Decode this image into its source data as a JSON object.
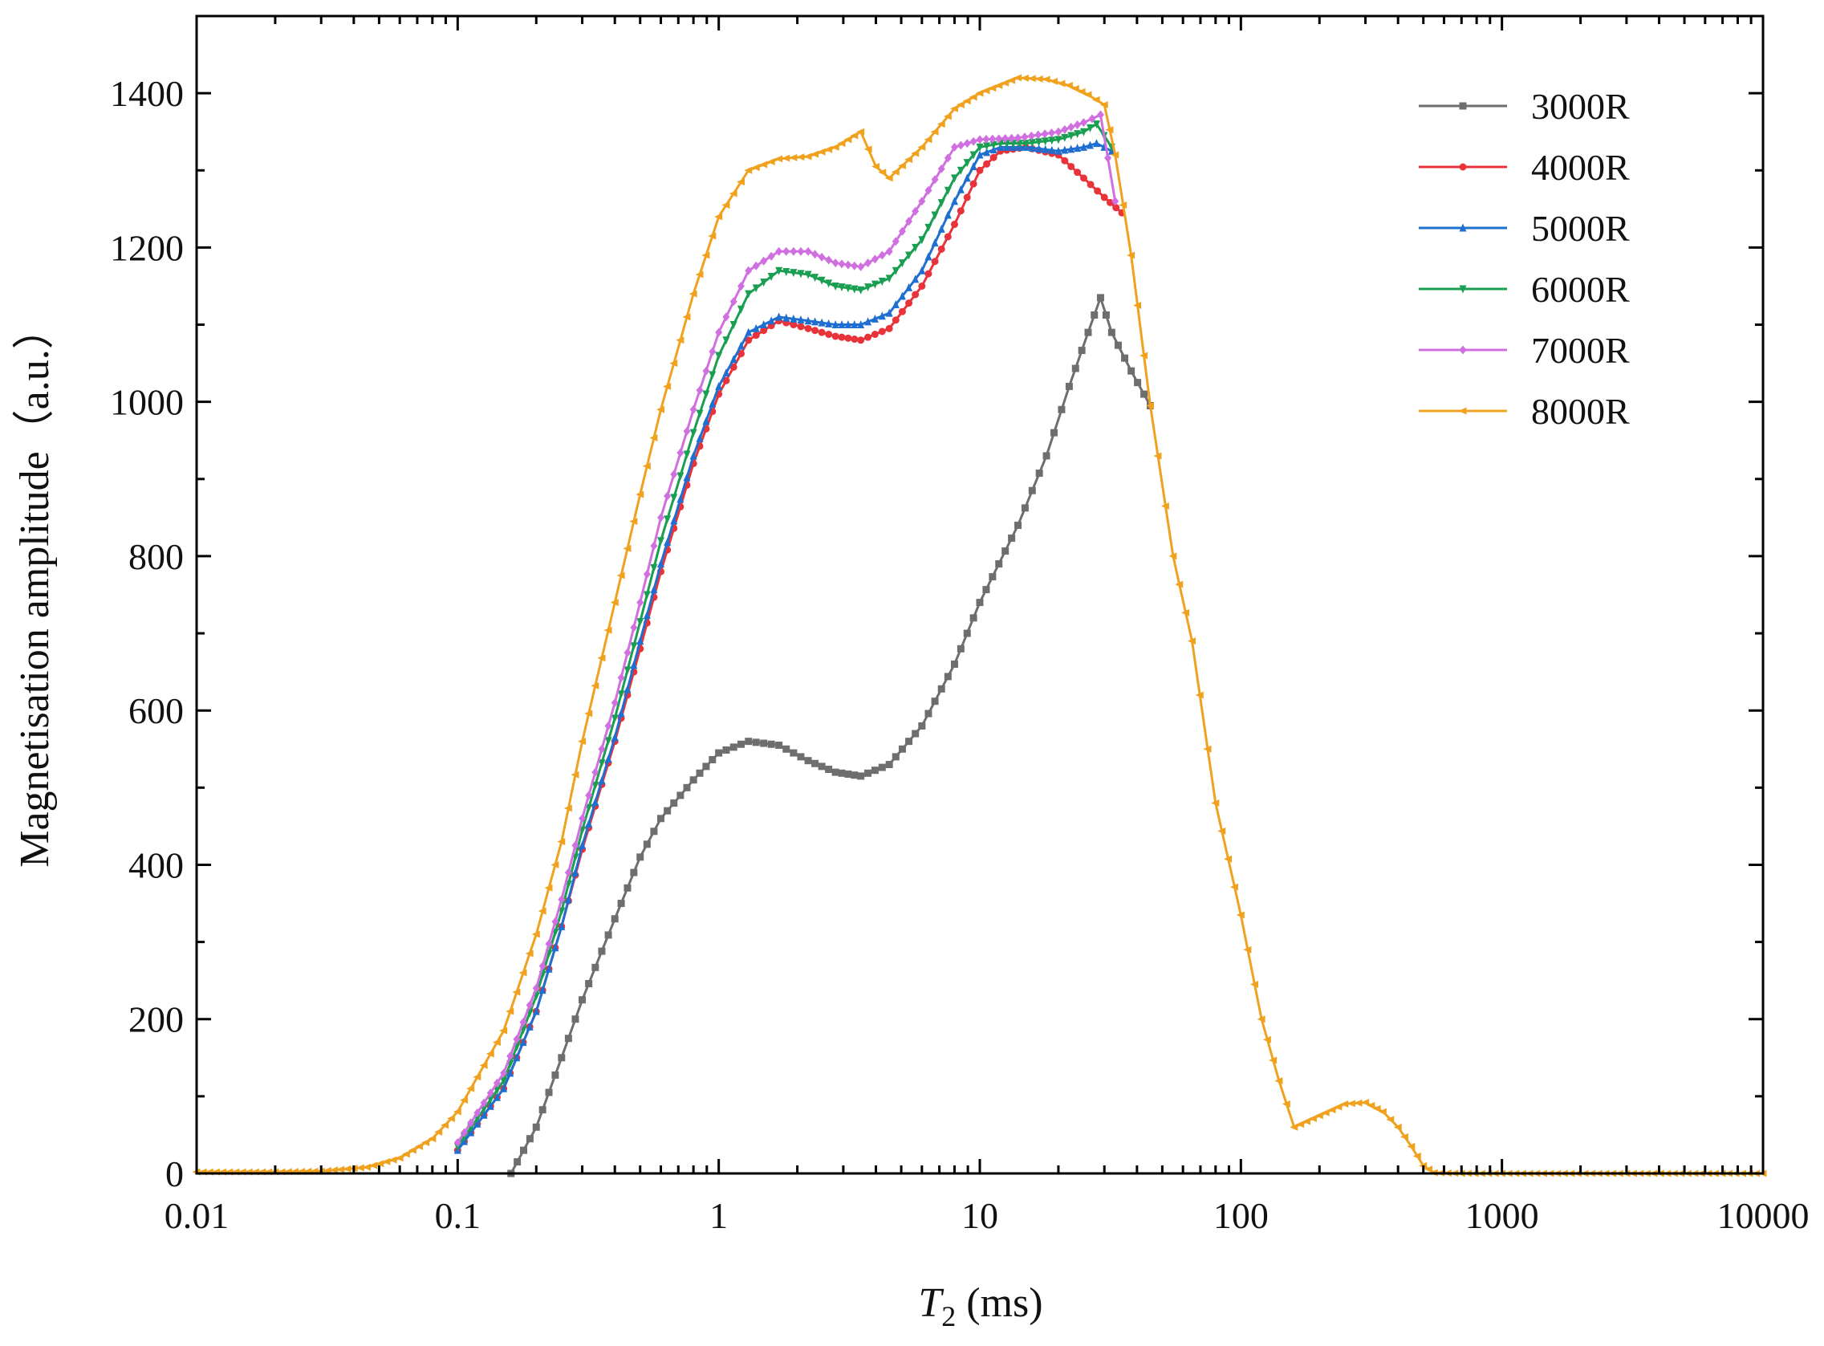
{
  "chart_data": {
    "type": "line",
    "title": "",
    "xlabel": {
      "symbol": "T",
      "subscript": "2",
      "unit": " (ms)"
    },
    "ylabel": "Magnetisation amplitude（a.u.）",
    "x_scale": "log",
    "xlim": [
      0.01,
      10000
    ],
    "ylim": [
      0,
      1500
    ],
    "x_ticks": [
      0.01,
      0.1,
      1,
      10,
      100,
      1000,
      10000
    ],
    "x_tick_labels": [
      "0.01",
      "0.1",
      "1",
      "10",
      "100",
      "1000",
      "10000"
    ],
    "y_ticks": [
      0,
      200,
      400,
      600,
      800,
      1000,
      1200,
      1400
    ],
    "y_tick_labels": [
      "0",
      "200",
      "400",
      "600",
      "800",
      "1000",
      "1200",
      "1400"
    ],
    "legend_position": "top-right",
    "series": [
      {
        "name": "3000R",
        "color": "#6e6e6e",
        "marker": "square",
        "points": [
          [
            0.16,
            0
          ],
          [
            0.2,
            60
          ],
          [
            0.25,
            150
          ],
          [
            0.3,
            225
          ],
          [
            0.4,
            330
          ],
          [
            0.5,
            410
          ],
          [
            0.6,
            460
          ],
          [
            0.8,
            510
          ],
          [
            1.0,
            545
          ],
          [
            1.3,
            560
          ],
          [
            1.7,
            555
          ],
          [
            2.2,
            535
          ],
          [
            2.8,
            520
          ],
          [
            3.5,
            515
          ],
          [
            4.5,
            530
          ],
          [
            6,
            580
          ],
          [
            8,
            660
          ],
          [
            10,
            740
          ],
          [
            14,
            840
          ],
          [
            18,
            930
          ],
          [
            22,
            1020
          ],
          [
            26,
            1090
          ],
          [
            29,
            1135
          ],
          [
            32,
            1090
          ],
          [
            38,
            1040
          ],
          [
            45,
            995
          ]
        ]
      },
      {
        "name": "4000R",
        "color": "#e8333a",
        "marker": "circle",
        "points": [
          [
            0.1,
            30
          ],
          [
            0.15,
            110
          ],
          [
            0.2,
            210
          ],
          [
            0.25,
            320
          ],
          [
            0.3,
            420
          ],
          [
            0.4,
            560
          ],
          [
            0.5,
            680
          ],
          [
            0.6,
            780
          ],
          [
            0.8,
            920
          ],
          [
            1.0,
            1010
          ],
          [
            1.3,
            1080
          ],
          [
            1.7,
            1105
          ],
          [
            2.2,
            1095
          ],
          [
            2.8,
            1085
          ],
          [
            3.5,
            1080
          ],
          [
            4.5,
            1095
          ],
          [
            6,
            1150
          ],
          [
            8,
            1230
          ],
          [
            10,
            1300
          ],
          [
            12,
            1325
          ],
          [
            15,
            1330
          ],
          [
            20,
            1320
          ],
          [
            25,
            1290
          ],
          [
            30,
            1265
          ],
          [
            35,
            1245
          ]
        ]
      },
      {
        "name": "5000R",
        "color": "#1f6fd1",
        "marker": "triangle-up",
        "points": [
          [
            0.1,
            30
          ],
          [
            0.15,
            110
          ],
          [
            0.2,
            210
          ],
          [
            0.25,
            320
          ],
          [
            0.3,
            425
          ],
          [
            0.4,
            565
          ],
          [
            0.5,
            690
          ],
          [
            0.6,
            790
          ],
          [
            0.8,
            930
          ],
          [
            1.0,
            1020
          ],
          [
            1.3,
            1090
          ],
          [
            1.7,
            1110
          ],
          [
            2.2,
            1105
          ],
          [
            2.8,
            1100
          ],
          [
            3.5,
            1100
          ],
          [
            4.5,
            1115
          ],
          [
            6,
            1170
          ],
          [
            8,
            1260
          ],
          [
            10,
            1320
          ],
          [
            12,
            1330
          ],
          [
            15,
            1330
          ],
          [
            20,
            1325
          ],
          [
            25,
            1330
          ],
          [
            28,
            1335
          ],
          [
            32,
            1325
          ]
        ]
      },
      {
        "name": "6000R",
        "color": "#1a9e52",
        "marker": "triangle-down",
        "points": [
          [
            0.1,
            35
          ],
          [
            0.15,
            120
          ],
          [
            0.2,
            230
          ],
          [
            0.25,
            340
          ],
          [
            0.3,
            445
          ],
          [
            0.4,
            590
          ],
          [
            0.5,
            715
          ],
          [
            0.6,
            820
          ],
          [
            0.8,
            960
          ],
          [
            1.0,
            1060
          ],
          [
            1.3,
            1140
          ],
          [
            1.7,
            1170
          ],
          [
            2.2,
            1165
          ],
          [
            2.8,
            1150
          ],
          [
            3.5,
            1145
          ],
          [
            4.5,
            1160
          ],
          [
            6,
            1210
          ],
          [
            8,
            1290
          ],
          [
            10,
            1330
          ],
          [
            12,
            1335
          ],
          [
            15,
            1335
          ],
          [
            20,
            1340
          ],
          [
            25,
            1350
          ],
          [
            28,
            1360
          ],
          [
            32,
            1330
          ]
        ]
      },
      {
        "name": "7000R",
        "color": "#d070e0",
        "marker": "diamond",
        "points": [
          [
            0.1,
            40
          ],
          [
            0.15,
            130
          ],
          [
            0.2,
            240
          ],
          [
            0.25,
            355
          ],
          [
            0.3,
            460
          ],
          [
            0.4,
            610
          ],
          [
            0.5,
            740
          ],
          [
            0.6,
            850
          ],
          [
            0.8,
            990
          ],
          [
            1.0,
            1090
          ],
          [
            1.3,
            1170
          ],
          [
            1.7,
            1195
          ],
          [
            2.2,
            1195
          ],
          [
            2.8,
            1180
          ],
          [
            3.5,
            1175
          ],
          [
            4.5,
            1195
          ],
          [
            6,
            1260
          ],
          [
            8,
            1330
          ],
          [
            10,
            1340
          ],
          [
            14,
            1342
          ],
          [
            20,
            1350
          ],
          [
            25,
            1362
          ],
          [
            29,
            1372
          ],
          [
            33,
            1260
          ]
        ]
      },
      {
        "name": "8000R",
        "color": "#f0a21e",
        "marker": "triangle-left",
        "points": [
          [
            0.01,
            2
          ],
          [
            0.02,
            2
          ],
          [
            0.03,
            3
          ],
          [
            0.045,
            8
          ],
          [
            0.06,
            20
          ],
          [
            0.08,
            45
          ],
          [
            0.1,
            80
          ],
          [
            0.15,
            185
          ],
          [
            0.2,
            310
          ],
          [
            0.25,
            430
          ],
          [
            0.3,
            560
          ],
          [
            0.4,
            740
          ],
          [
            0.5,
            880
          ],
          [
            0.6,
            990
          ],
          [
            0.8,
            1140
          ],
          [
            1.0,
            1240
          ],
          [
            1.3,
            1300
          ],
          [
            1.7,
            1315
          ],
          [
            2.2,
            1318
          ],
          [
            2.8,
            1330
          ],
          [
            3.5,
            1350
          ],
          [
            4.0,
            1305
          ],
          [
            4.5,
            1290
          ],
          [
            6,
            1330
          ],
          [
            8,
            1380
          ],
          [
            10,
            1400
          ],
          [
            14,
            1420
          ],
          [
            18,
            1418
          ],
          [
            22,
            1410
          ],
          [
            26,
            1398
          ],
          [
            30,
            1385
          ],
          [
            33,
            1320
          ],
          [
            38,
            1190
          ],
          [
            45,
            995
          ],
          [
            55,
            800
          ],
          [
            65,
            690
          ],
          [
            80,
            480
          ],
          [
            100,
            335
          ],
          [
            120,
            200
          ],
          [
            140,
            120
          ],
          [
            160,
            60
          ],
          [
            200,
            75
          ],
          [
            250,
            90
          ],
          [
            300,
            92
          ],
          [
            350,
            80
          ],
          [
            400,
            60
          ],
          [
            450,
            35
          ],
          [
            500,
            10
          ],
          [
            550,
            1
          ],
          [
            700,
            0
          ],
          [
            1000,
            0
          ],
          [
            3000,
            0
          ],
          [
            10000,
            0
          ]
        ]
      }
    ]
  },
  "legend": {
    "items": [
      "3000R",
      "4000R",
      "5000R",
      "6000R",
      "7000R",
      "8000R"
    ]
  }
}
